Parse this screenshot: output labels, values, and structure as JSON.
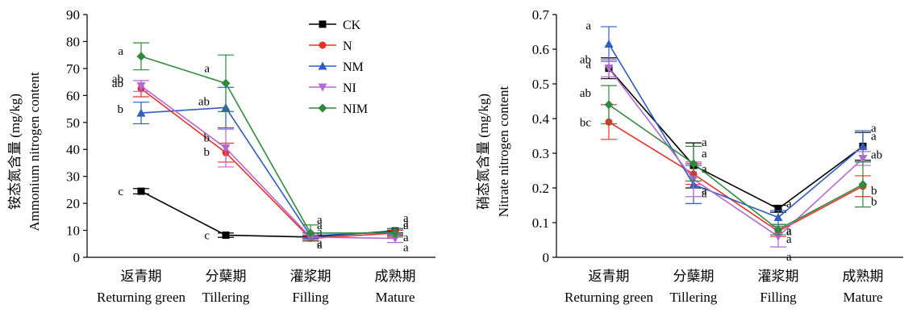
{
  "chart_data": [
    {
      "type": "line",
      "ylabel_cn": "铵态氮含量 (mg/kg)",
      "ylabel_en": "Ammonium nitrogen content",
      "ylim": [
        0,
        90
      ],
      "yticks": [
        "0",
        "10",
        "20",
        "30",
        "40",
        "50",
        "60",
        "70",
        "80",
        "90"
      ],
      "categories_cn": [
        "返青期",
        "分蘖期",
        "灌浆期",
        "成熟期"
      ],
      "categories_en": [
        "Returning green",
        "Tillering",
        "Filling",
        "Mature"
      ],
      "legend": "top-right",
      "series": [
        {
          "name": "CK",
          "color": "#000000",
          "marker": "square",
          "values": [
            24.5,
            8.2,
            7.5,
            9.8
          ],
          "errors": [
            1.0,
            0.8,
            0.5,
            0.8
          ],
          "letters": [
            "c",
            "c",
            "a",
            "a"
          ]
        },
        {
          "name": "N",
          "color": "#e8302a",
          "marker": "circle",
          "values": [
            62.5,
            38.8,
            7.0,
            9.0
          ],
          "errors": [
            3.0,
            3.5,
            0.8,
            1.0
          ],
          "letters": [
            "ab",
            "b",
            "a",
            "a"
          ]
        },
        {
          "name": "NM",
          "color": "#2f5ec0",
          "marker": "triangle-up",
          "values": [
            53.5,
            55.5,
            8.0,
            9.5
          ],
          "errors": [
            4.0,
            7.5,
            1.0,
            1.2
          ],
          "letters": [
            "b",
            "ab",
            "a",
            "a"
          ]
        },
        {
          "name": "NI",
          "color": "#b368cf",
          "marker": "triangle-down",
          "values": [
            63.5,
            40.5,
            7.5,
            7.0
          ],
          "errors": [
            2.0,
            7.0,
            0.8,
            1.5
          ],
          "letters": [
            "ab",
            "b",
            "a",
            "a"
          ]
        },
        {
          "name": "NIM",
          "color": "#2f8a3a",
          "marker": "diamond",
          "values": [
            74.5,
            64.5,
            9.0,
            9.0
          ],
          "errors": [
            5.0,
            10.5,
            3.0,
            1.5
          ],
          "letters": [
            "a",
            "a",
            "a",
            "a"
          ]
        }
      ]
    },
    {
      "type": "line",
      "ylabel_cn": "硝态氮含量 (mg/kg)",
      "ylabel_en": "Nitrate nitrogen content",
      "ylim": [
        0,
        0.7
      ],
      "yticks": [
        "0",
        "0.1",
        "0.2",
        "0.3",
        "0.4",
        "0.5",
        "0.6",
        "0.7"
      ],
      "categories_cn": [
        "返青期",
        "分蘖期",
        "灌浆期",
        "成熟期"
      ],
      "categories_en": [
        "Returning green",
        "Tillering",
        "Filling",
        "Mature"
      ],
      "series": [
        {
          "name": "CK",
          "color": "#000000",
          "marker": "square",
          "values": [
            0.545,
            0.265,
            0.14,
            0.32
          ],
          "errors": [
            0.03,
            0.065,
            0.01,
            0.04
          ],
          "letters": [
            "a",
            "a",
            "a",
            "a"
          ]
        },
        {
          "name": "N",
          "color": "#e8302a",
          "marker": "circle",
          "values": [
            0.39,
            0.24,
            0.075,
            0.205
          ],
          "errors": [
            0.05,
            0.03,
            0.015,
            0.03
          ],
          "letters": [
            "bc",
            "a",
            "a",
            "b"
          ]
        },
        {
          "name": "NM",
          "color": "#2f5ec0",
          "marker": "triangle-up",
          "values": [
            0.615,
            0.21,
            0.115,
            0.32
          ],
          "errors": [
            0.05,
            0.055,
            0.02,
            0.045
          ],
          "letters": [
            "a",
            "a",
            "a",
            "a"
          ]
        },
        {
          "name": "NI",
          "color": "#b368cf",
          "marker": "triangle-down",
          "values": [
            0.545,
            0.225,
            0.06,
            0.285
          ],
          "errors": [
            0.025,
            0.05,
            0.03,
            0.02
          ],
          "letters": [
            "ab",
            "a",
            "a",
            "ab"
          ]
        },
        {
          "name": "NIM",
          "color": "#2f8a3a",
          "marker": "diamond",
          "values": [
            0.44,
            0.27,
            0.08,
            0.21
          ],
          "errors": [
            0.055,
            0.05,
            0.015,
            0.065
          ],
          "letters": [
            "ab",
            "a",
            "a",
            "b"
          ]
        }
      ]
    }
  ]
}
